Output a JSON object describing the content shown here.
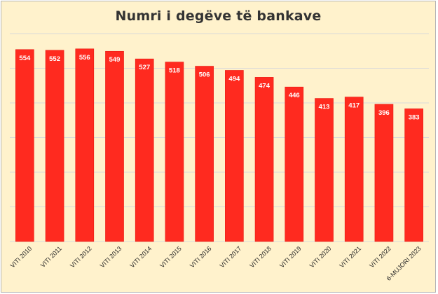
{
  "chart_data": {
    "type": "bar",
    "title": "Numri i degëve të bankave",
    "xlabel": "",
    "ylabel": "",
    "categories": [
      "VITI 2010",
      "VITI 2011",
      "VITI 2012",
      "VITI 2013",
      "VITI 2014",
      "VITI 2015",
      "VITI 2016",
      "VITI 2017",
      "VITI 2018",
      "VITI 2019",
      "VITI 2020",
      "VITI 2021",
      "VITI 2022",
      "6-MUJORI 2023"
    ],
    "values": [
      554,
      552,
      556,
      549,
      527,
      518,
      506,
      494,
      474,
      446,
      413,
      417,
      396,
      383
    ],
    "ylim": [
      0,
      600
    ],
    "grid": true,
    "y_tick_labels_visible": false,
    "data_labels": true,
    "colors": {
      "bar": "#ff2a1f",
      "bar_edge": "#e81b12",
      "background": "#fff2cc",
      "grid": "#d9d9d9",
      "title": "#333333",
      "data_label": "#ffffff",
      "tick_label": "#262626"
    }
  }
}
